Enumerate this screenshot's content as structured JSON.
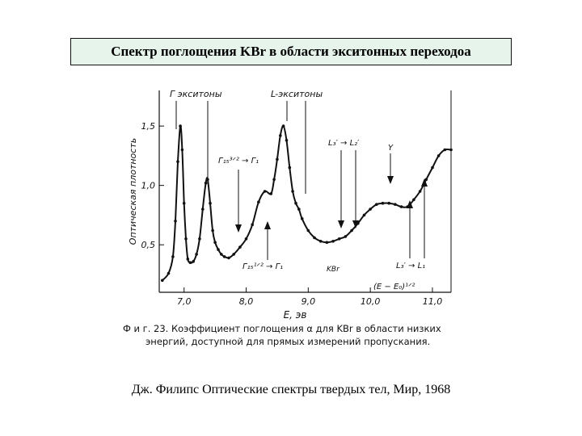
{
  "slide": {
    "title": "Спектр поглощения KBr в области экситонных переходоа",
    "caption": "Дж. Филипс Оптические спектры твердых тел, Мир, 1968"
  },
  "figure": {
    "caption_line1": "Ф и г.   23.  Коэффициент  поглощения  α  для  KBr  в  области  низких",
    "caption_line2": "энергий,  доступной  для  прямых  измерений  пропускания."
  },
  "chart_data": {
    "type": "line",
    "ylabel": "Оптическая плотность",
    "xlabel": "E, эв",
    "xlim": [
      6.6,
      11.3
    ],
    "ylim": [
      0.1,
      1.8
    ],
    "xticks": [
      "7,0",
      "8,0",
      "9,0",
      "10,0",
      "11,0"
    ],
    "xtick_values": [
      7.0,
      8.0,
      9.0,
      10.0,
      11.0
    ],
    "yticks": [
      "0,5",
      "1,0",
      "1,5"
    ],
    "ytick_values": [
      0.5,
      1.0,
      1.5
    ],
    "grid": false,
    "sample_label": "KBr",
    "series": [
      {
        "x": [
          6.65,
          6.75,
          6.82,
          6.86,
          6.9,
          6.94,
          6.97,
          7.0,
          7.03,
          7.06,
          7.1,
          7.15,
          7.2,
          7.25,
          7.3,
          7.35,
          7.38,
          7.42,
          7.46,
          7.5,
          7.55,
          7.6,
          7.65,
          7.72,
          7.8,
          7.9,
          8.0,
          8.1,
          8.2,
          8.3,
          8.4,
          8.45,
          8.5,
          8.55,
          8.6,
          8.65,
          8.7,
          8.75,
          8.8,
          8.85,
          8.9,
          9.0,
          9.1,
          9.2,
          9.3,
          9.4,
          9.5,
          9.6,
          9.7,
          9.8,
          9.9,
          10.0,
          10.1,
          10.2,
          10.3,
          10.4,
          10.5,
          10.6,
          10.7,
          10.8,
          10.9,
          11.0,
          11.1,
          11.2,
          11.3
        ],
        "y": [
          0.2,
          0.26,
          0.4,
          0.7,
          1.2,
          1.5,
          1.3,
          0.85,
          0.55,
          0.38,
          0.35,
          0.36,
          0.42,
          0.55,
          0.8,
          1.02,
          1.05,
          0.85,
          0.62,
          0.52,
          0.46,
          0.42,
          0.4,
          0.39,
          0.42,
          0.48,
          0.55,
          0.67,
          0.86,
          0.95,
          0.93,
          1.05,
          1.22,
          1.42,
          1.5,
          1.38,
          1.15,
          0.95,
          0.85,
          0.8,
          0.72,
          0.62,
          0.56,
          0.53,
          0.52,
          0.53,
          0.55,
          0.57,
          0.62,
          0.68,
          0.75,
          0.8,
          0.84,
          0.85,
          0.85,
          0.84,
          0.82,
          0.82,
          0.88,
          0.95,
          1.05,
          1.15,
          1.25,
          1.3,
          1.3
        ]
      }
    ],
    "annotations": {
      "gamma_excitons": "Г экситоны",
      "l_excitons": "L-экситоны",
      "gamma15_32": "Г₁₅³ᐟ² → Г₁",
      "gamma15_12": "Г₁₅¹ᐟ² → Г₁",
      "l3_l2": "L₃′ → L₂′",
      "y_label": "Y",
      "l3_l1": "L₃′ → L₁",
      "e_minus_e0": "(E − E₀)¹ᐟ²"
    }
  }
}
